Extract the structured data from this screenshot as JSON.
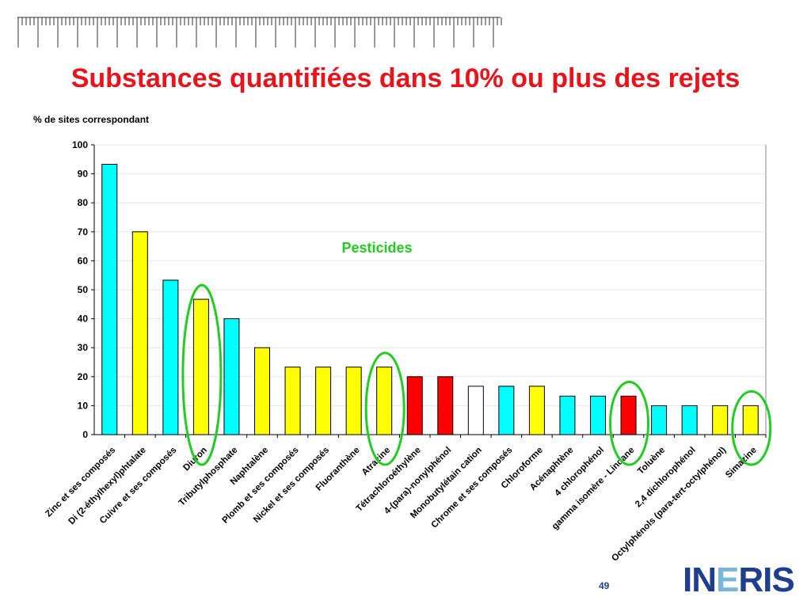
{
  "title": "Substances quantifiées dans 10% ou plus des rejets",
  "page_number": "49",
  "logo": {
    "text_before_dot": "IN",
    "dot": "E",
    "text_after_dot": "RIS"
  },
  "annotation": {
    "text": "Pesticides",
    "color": "#22cc22"
  },
  "colors": {
    "cyan": "#00ffff",
    "yellow": "#ffff00",
    "red": "#ff0000",
    "white": "#ffffff",
    "title": "#e8141b",
    "highlight": "#22cc22",
    "logo": "#1f3f8c"
  },
  "chart_data": {
    "type": "bar",
    "ylabel": "% de sites correspondant",
    "xlabel": "",
    "ylim": [
      0,
      100
    ],
    "yticks": [
      0,
      10,
      20,
      30,
      40,
      50,
      60,
      70,
      80,
      90,
      100
    ],
    "grid": true,
    "categories": [
      "Zinc et ses composés",
      "Di (2-éthylhexyl)phtalate",
      "Cuivre et ses composés",
      "Diuron",
      "Tributylphosphate",
      "Naphtalène",
      "Plomb et ses composés",
      "Nickel et ses composés",
      "Fluoranthène",
      "Atrazine",
      "Tétrachloroéthylène",
      "4-(para)-nonylphénol",
      "Monobutylétain cation",
      "Chrome et ses composés",
      "Chloroforme",
      "Acénaphtène",
      "4 chlorophénol",
      "gamma isomère - Lindane",
      "Toluène",
      "2,4 dichlorophénol",
      "Octylphénols (para-tert-octylphénol)",
      "Simazine"
    ],
    "values": [
      93.3,
      70,
      53.3,
      46.7,
      40,
      30,
      23.3,
      23.3,
      23.3,
      23.3,
      20,
      20,
      16.7,
      16.7,
      16.7,
      13.3,
      13.3,
      13.3,
      10,
      10,
      10,
      10
    ],
    "bar_colors": [
      "cyan",
      "yellow",
      "cyan",
      "yellow",
      "cyan",
      "yellow",
      "yellow",
      "yellow",
      "yellow",
      "yellow",
      "red",
      "red",
      "white",
      "cyan",
      "yellow",
      "cyan",
      "cyan",
      "red",
      "cyan",
      "cyan",
      "yellow",
      "yellow"
    ],
    "highlighted_categories": [
      "Diuron",
      "Atrazine",
      "gamma isomère - Lindane",
      "Simazine"
    ]
  }
}
